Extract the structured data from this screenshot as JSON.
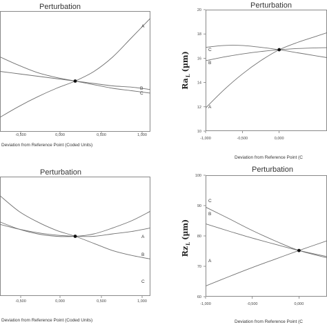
{
  "chart_data": [
    {
      "type": "line",
      "title": "Perturbation",
      "xlabel": "Deviation from Reference Point (Coded Units)",
      "ylabel": "",
      "xlim": [
        -1.0,
        1.0
      ],
      "ylim": [
        0,
        1
      ],
      "x_ticks": [
        "-0,500",
        "0,000",
        "0,500",
        "1,000"
      ],
      "y_ticks": [],
      "reference_point": [
        0.0,
        0.42
      ],
      "series": [
        {
          "name": "A",
          "x": [
            -1.0,
            -0.75,
            -0.5,
            -0.25,
            0.0,
            0.25,
            0.5,
            0.75,
            1.0
          ],
          "y": [
            0.12,
            0.21,
            0.29,
            0.36,
            0.42,
            0.5,
            0.62,
            0.78,
            0.94
          ]
        },
        {
          "name": "B",
          "x": [
            -1.0,
            -0.75,
            -0.5,
            -0.25,
            0.0,
            0.25,
            0.5,
            0.75,
            1.0
          ],
          "y": [
            0.5,
            0.48,
            0.46,
            0.44,
            0.42,
            0.4,
            0.38,
            0.37,
            0.35
          ]
        },
        {
          "name": "C",
          "x": [
            -1.0,
            -0.75,
            -0.5,
            -0.25,
            0.0,
            0.25,
            0.5,
            0.75,
            1.0
          ],
          "y": [
            0.62,
            0.55,
            0.49,
            0.45,
            0.42,
            0.39,
            0.36,
            0.34,
            0.32
          ]
        }
      ]
    },
    {
      "type": "line",
      "title": "Perturbation",
      "xlabel": "Deviation from Reference Point (C",
      "ylabel": "Ra",
      "ylabel_sub": "L",
      "ylabel_unit": "(µm)",
      "xlim": [
        -1.0,
        0.65
      ],
      "ylim": [
        10,
        20
      ],
      "x_ticks": [
        "-1,000",
        "-0,500",
        "0,000"
      ],
      "x_tick_values": [
        -1.0,
        -0.5,
        0.0
      ],
      "y_ticks": [
        "10",
        "12",
        "14",
        "16",
        "18",
        "20"
      ],
      "y_tick_values": [
        10,
        12,
        14,
        16,
        18,
        20
      ],
      "reference_point": [
        0.0,
        16.7
      ],
      "series": [
        {
          "name": "A",
          "x": [
            -1.0,
            -0.75,
            -0.5,
            -0.25,
            0.0,
            0.25,
            0.5,
            0.65
          ],
          "y": [
            11.9,
            13.4,
            14.7,
            15.8,
            16.7,
            17.3,
            17.8,
            18.1
          ]
        },
        {
          "name": "B",
          "x": [
            -1.0,
            -0.75,
            -0.5,
            -0.25,
            0.0,
            0.25,
            0.5,
            0.65
          ],
          "y": [
            15.8,
            16.1,
            16.35,
            16.55,
            16.7,
            16.8,
            16.85,
            16.87
          ]
        },
        {
          "name": "C",
          "x": [
            -1.0,
            -0.75,
            -0.5,
            -0.25,
            0.0,
            0.25,
            0.5,
            0.65
          ],
          "y": [
            16.9,
            17.05,
            17.05,
            16.9,
            16.7,
            16.45,
            16.2,
            16.05
          ]
        }
      ]
    },
    {
      "type": "line",
      "title": "Perturbation",
      "xlabel": "Deviation from Reference Point (Coded Units)",
      "ylabel": "",
      "xlim": [
        -1.0,
        1.0
      ],
      "ylim": [
        0,
        1
      ],
      "x_ticks": [
        "-0,500",
        "0,000",
        "0,500",
        "1,000"
      ],
      "y_ticks": [],
      "reference_point": [
        0.0,
        0.5
      ],
      "series": [
        {
          "name": "A",
          "x": [
            -1.0,
            -0.75,
            -0.5,
            -0.25,
            0.0,
            0.25,
            0.5,
            0.75,
            1.0
          ],
          "y": [
            0.62,
            0.56,
            0.52,
            0.5,
            0.5,
            0.52,
            0.57,
            0.63,
            0.71
          ]
        },
        {
          "name": "B",
          "x": [
            -1.0,
            -0.75,
            -0.5,
            -0.25,
            0.0,
            0.25,
            0.5,
            0.75,
            1.0
          ],
          "y": [
            0.6,
            0.56,
            0.53,
            0.51,
            0.5,
            0.5,
            0.52,
            0.54,
            0.57
          ]
        },
        {
          "name": "C",
          "x": [
            -1.0,
            -0.75,
            -0.5,
            -0.25,
            0.0,
            0.25,
            0.5,
            0.75,
            1.0
          ],
          "y": [
            0.84,
            0.71,
            0.62,
            0.55,
            0.5,
            0.44,
            0.38,
            0.34,
            0.31
          ]
        }
      ]
    },
    {
      "type": "line",
      "title": "Perturbation",
      "xlabel": "Deviation from Reference Point (C",
      "ylabel": "Rz",
      "ylabel_sub": "L",
      "ylabel_unit": "(µm)",
      "xlim": [
        -1.0,
        0.3
      ],
      "ylim": [
        60,
        100
      ],
      "x_ticks": [
        "-1,000",
        "-0,500",
        "0,000"
      ],
      "x_tick_values": [
        -1.0,
        -0.5,
        0.0
      ],
      "y_ticks": [
        "60",
        "70",
        "80",
        "90",
        "100"
      ],
      "y_tick_values": [
        60,
        70,
        80,
        90,
        100
      ],
      "reference_point": [
        0.0,
        75.2
      ],
      "series": [
        {
          "name": "A",
          "x": [
            -1.0,
            -0.75,
            -0.5,
            -0.25,
            0.0,
            0.3
          ],
          "y": [
            63.5,
            66.6,
            69.6,
            72.4,
            75.2,
            78.4
          ]
        },
        {
          "name": "B",
          "x": [
            -1.0,
            -0.75,
            -0.5,
            -0.25,
            0.0,
            0.3
          ],
          "y": [
            84.0,
            81.6,
            79.3,
            77.2,
            75.2,
            73.2
          ]
        },
        {
          "name": "C",
          "x": [
            -1.0,
            -0.75,
            -0.5,
            -0.25,
            0.0,
            0.3
          ],
          "y": [
            89.5,
            85.7,
            81.8,
            78.3,
            75.2,
            72.8
          ]
        }
      ]
    }
  ]
}
